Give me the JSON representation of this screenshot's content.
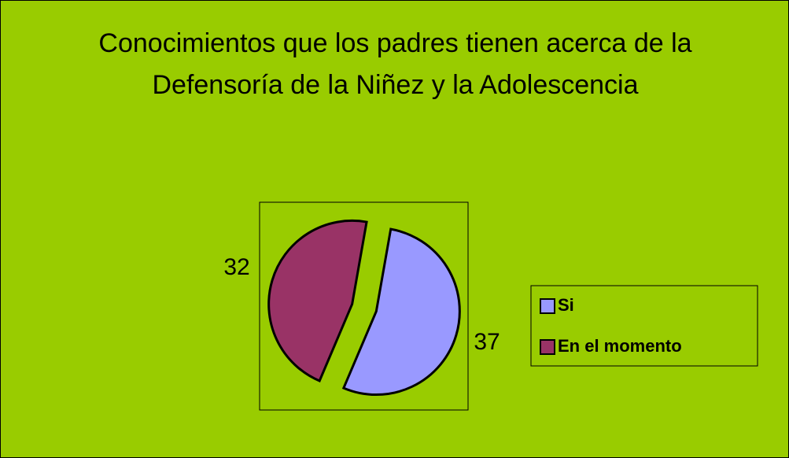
{
  "chart_data": {
    "type": "pie",
    "title": "Conocimientos que los padres tienen acerca de la Defensoría de la Niñez y la Adolescencia",
    "categories": [
      "Si",
      "En el momento"
    ],
    "values": [
      37,
      32
    ],
    "colors": [
      "#9999ff",
      "#993366"
    ],
    "legend": "right"
  }
}
